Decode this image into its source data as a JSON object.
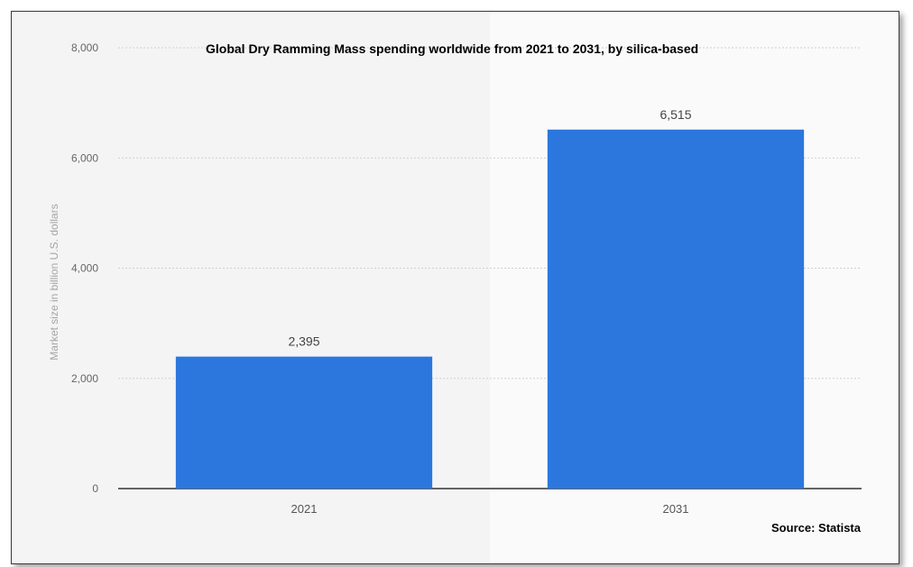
{
  "chart_data": {
    "type": "bar",
    "title": "Global Dry Ramming Mass spending worldwide from 2021 to 2031, by silica-based",
    "xlabel": "",
    "ylabel": "Market size in billion U.S. dollars",
    "categories": [
      "2021",
      "2031"
    ],
    "values": [
      2395,
      6515
    ],
    "value_labels": [
      "2,395",
      "6,515"
    ],
    "ylim": [
      0,
      8000
    ],
    "yticks": [
      0,
      2000,
      4000,
      6000,
      8000
    ],
    "ytick_labels": [
      "0",
      "2,000",
      "4,000",
      "6,000",
      "8,000"
    ],
    "grid": true,
    "bar_color": "#2b77dd",
    "source": "Source: Statista"
  }
}
